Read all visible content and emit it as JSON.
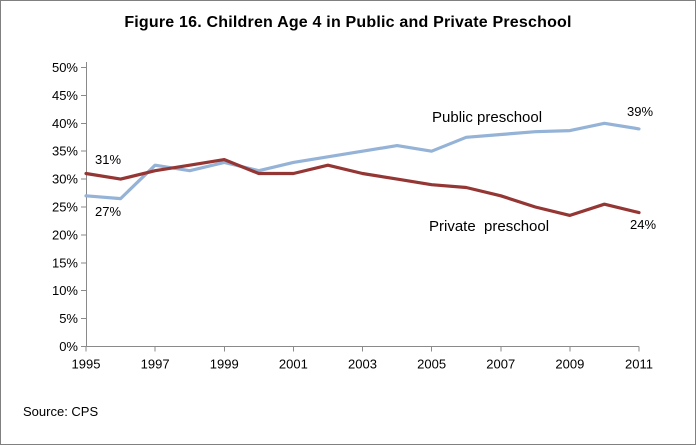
{
  "window": {
    "title": "Figure 16. Children Age 4 in Public and Private Preschool"
  },
  "source_note": "Source: CPS",
  "chart_data": {
    "type": "line",
    "title": "Figure 16. Children Age 4 in Public and Private Preschool",
    "x": [
      1995,
      1996,
      1997,
      1998,
      1999,
      2000,
      2001,
      2002,
      2003,
      2004,
      2005,
      2006,
      2007,
      2008,
      2009,
      2010,
      2011
    ],
    "series": [
      {
        "name": "Public preschool",
        "color": "#95B3D7",
        "values": [
          27,
          26.5,
          32.5,
          31.5,
          33,
          31.5,
          33,
          34,
          35,
          36,
          35,
          37.5,
          38,
          38.5,
          38.7,
          40,
          39
        ]
      },
      {
        "name": "Private preschool",
        "color": "#943634",
        "values": [
          31,
          30,
          31.5,
          32.5,
          33.5,
          31,
          31,
          32.5,
          31,
          30,
          29,
          28.5,
          27,
          25,
          23.5,
          25.5,
          24
        ]
      }
    ],
    "ylim": [
      0,
      50
    ],
    "ytick_step": 5,
    "ytick_suffix": "%",
    "xtick_years": [
      1995,
      1997,
      1999,
      2001,
      2003,
      2005,
      2007,
      2009,
      2011
    ],
    "grid": false,
    "legend_position": "inline-labels",
    "axis_color": "#8a8a8a",
    "annotations": {
      "private_start": "31%",
      "public_start": "27%",
      "public_end": "39%",
      "private_end": "24%"
    },
    "series_labels": {
      "public": "Public preschool",
      "private": "Private  preschool"
    }
  }
}
